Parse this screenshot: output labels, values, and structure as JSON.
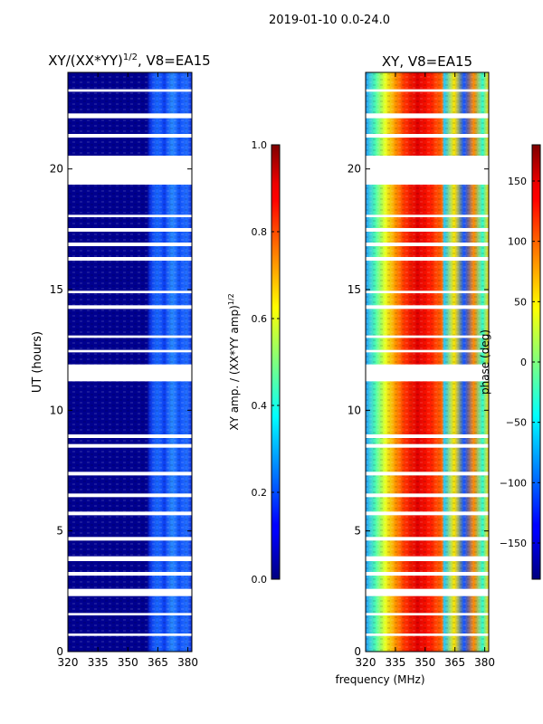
{
  "figure": {
    "suptitle": "2019-01-10 0.0-24.0",
    "xlabel": "frequency (MHz)"
  },
  "chart_data": [
    {
      "type": "heatmap",
      "title_main": "XY/(XX*YY)",
      "title_exp": "1/2",
      "title_tail": ", V8=EA15",
      "ylabel": "UT (hours)",
      "xlim": [
        320,
        382
      ],
      "ylim": [
        0,
        24
      ],
      "xticks": [
        320,
        335,
        350,
        365,
        380
      ],
      "yticks": [
        0,
        5,
        10,
        15,
        20
      ],
      "colormap": "jet",
      "colorbar": {
        "label_main": "XY amp. / (XX*YY amp)",
        "label_exp": "1/2",
        "min": 0.0,
        "max": 1.0,
        "ticks": [
          0.0,
          0.2,
          0.4,
          0.6,
          0.8,
          1.0
        ],
        "tick_labels": [
          "0.0",
          "0.2",
          "0.4",
          "0.6",
          "0.8",
          "1.0"
        ]
      }
    },
    {
      "type": "heatmap",
      "title_main": "XY, V8=EA15",
      "ylabel": "",
      "xlim": [
        320,
        382
      ],
      "ylim": [
        0,
        24
      ],
      "xticks": [
        320,
        335,
        350,
        365,
        380
      ],
      "yticks": [
        0,
        5,
        10,
        15,
        20
      ],
      "colormap": "jet",
      "colorbar": {
        "label_main": "phase (deg)",
        "min": -180,
        "max": 180,
        "ticks": [
          -150,
          -100,
          -50,
          0,
          50,
          100,
          150
        ],
        "tick_labels": [
          "−150",
          "−100",
          "−50",
          "0",
          "50",
          "100",
          "150"
        ]
      }
    }
  ],
  "gaps_hours": [
    [
      23.2,
      23.3
    ],
    [
      22.1,
      22.3
    ],
    [
      21.3,
      21.45
    ],
    [
      20.55,
      19.35
    ],
    [
      18.0,
      18.1
    ],
    [
      17.4,
      17.55
    ],
    [
      16.8,
      16.95
    ],
    [
      16.2,
      16.35
    ],
    [
      14.85,
      14.95
    ],
    [
      14.2,
      14.35
    ],
    [
      13.0,
      13.1
    ],
    [
      12.4,
      12.5
    ],
    [
      11.9,
      11.2
    ],
    [
      9.0,
      8.85
    ],
    [
      8.6,
      8.45
    ],
    [
      7.45,
      7.3
    ],
    [
      6.55,
      6.4
    ],
    [
      5.8,
      5.65
    ],
    [
      4.75,
      4.6
    ],
    [
      3.95,
      3.75
    ],
    [
      3.3,
      3.15
    ],
    [
      2.6,
      2.3
    ],
    [
      1.6,
      1.5
    ],
    [
      0.75,
      0.65
    ]
  ]
}
